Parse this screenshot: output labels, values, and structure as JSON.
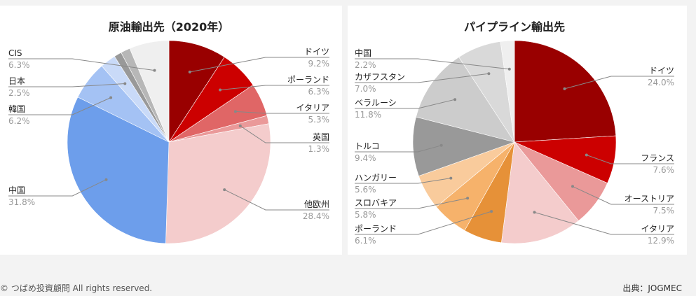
{
  "chart_data": [
    {
      "type": "pie",
      "title": "原油輸出先（2020年）",
      "slices": [
        {
          "label": "ドイツ",
          "pct_label": "9.2%",
          "value": 9.2,
          "color": "#990000"
        },
        {
          "label": "ポーランド",
          "pct_label": "6.3%",
          "value": 6.3,
          "color": "#cc0000"
        },
        {
          "label": "イタリア",
          "pct_label": "5.3%",
          "value": 5.3,
          "color": "#e06666"
        },
        {
          "label": "英国",
          "pct_label": "1.3%",
          "value": 1.3,
          "color": "#ea9999"
        },
        {
          "label": "他欧州",
          "pct_label": "28.4%",
          "value": 28.4,
          "color": "#f4cccc"
        },
        {
          "label": "中国",
          "pct_label": "31.8%",
          "value": 31.8,
          "color": "#6d9eeb"
        },
        {
          "label": "韓国",
          "pct_label": "6.2%",
          "value": 6.2,
          "color": "#a4c2f4"
        },
        {
          "label": "日本",
          "pct_label": "2.5%",
          "value": 2.5,
          "color": "#c9daf8"
        },
        {
          "label": "",
          "pct_label": "",
          "value": 1.2,
          "color": "#999999"
        },
        {
          "label": "",
          "pct_label": "",
          "value": 1.5,
          "color": "#b7b7b7"
        },
        {
          "label": "CIS",
          "pct_label": "6.3%",
          "value": 6.3,
          "color": "#efefef"
        }
      ]
    },
    {
      "type": "pie",
      "title": "パイプライン輸出先",
      "slices": [
        {
          "label": "ドイツ",
          "pct_label": "24.0%",
          "value": 24.0,
          "color": "#990000"
        },
        {
          "label": "フランス",
          "pct_label": "7.6%",
          "value": 7.6,
          "color": "#cc0000"
        },
        {
          "label": "オーストリア",
          "pct_label": "7.5%",
          "value": 7.5,
          "color": "#ea9999"
        },
        {
          "label": "イタリア",
          "pct_label": "12.9%",
          "value": 12.9,
          "color": "#f4cccc"
        },
        {
          "label": "ポーランド",
          "pct_label": "6.1%",
          "value": 6.1,
          "color": "#e69138"
        },
        {
          "label": "スロバキア",
          "pct_label": "5.8%",
          "value": 5.8,
          "color": "#f6b26b"
        },
        {
          "label": "ハンガリー",
          "pct_label": "5.6%",
          "value": 5.6,
          "color": "#f9cb9c"
        },
        {
          "label": "トルコ",
          "pct_label": "9.4%",
          "value": 9.4,
          "color": "#999999"
        },
        {
          "label": "ベラルーシ",
          "pct_label": "11.8%",
          "value": 11.8,
          "color": "#cccccc"
        },
        {
          "label": "カザフスタン",
          "pct_label": "7.0%",
          "value": 7.0,
          "color": "#d9d9d9"
        },
        {
          "label": "中国",
          "pct_label": "2.2%",
          "value": 2.2,
          "color": "#efefef"
        }
      ]
    }
  ],
  "footer": {
    "copyright": "© つばめ投資顧問 All rights reserved.",
    "source": "出典：JOGMEC"
  }
}
